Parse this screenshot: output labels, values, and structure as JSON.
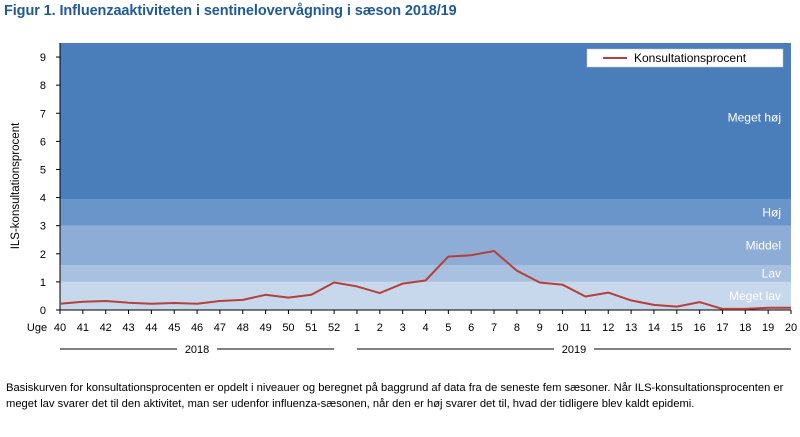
{
  "figure": {
    "title": "Figur 1. Influenzaaktiviteten i sentinelovervågning i sæson 2018/19",
    "caption": "Basiskurven for konsultationsprocenten er opdelt i niveauer og beregnet på baggrund af data fra de seneste fem sæsoner. Når ILS-konsultationsprocenten er meget lav svarer det til den aktivitet, man ser udenfor influenza-sæsonen, når den er høj svarer det til, hvad der tidligere blev kaldt epidemi."
  },
  "chart_data": {
    "type": "line",
    "xlabel": "Uge",
    "ylabel": "ILS-konsultationsprocent",
    "ylim": [
      0,
      9.5
    ],
    "yticks": [
      0,
      1,
      2,
      3,
      4,
      5,
      6,
      7,
      8,
      9
    ],
    "categories": [
      "40",
      "41",
      "42",
      "43",
      "44",
      "45",
      "46",
      "47",
      "48",
      "49",
      "50",
      "51",
      "52",
      "1",
      "2",
      "3",
      "4",
      "5",
      "6",
      "7",
      "8",
      "9",
      "10",
      "11",
      "12",
      "13",
      "14",
      "15",
      "16",
      "17",
      "18",
      "19",
      "20"
    ],
    "series": [
      {
        "name": "Konsultationsprocent",
        "color": "#b5403a",
        "values": [
          0.22,
          0.29,
          0.32,
          0.26,
          0.22,
          0.25,
          0.22,
          0.32,
          0.36,
          0.54,
          0.44,
          0.54,
          0.98,
          0.84,
          0.6,
          0.94,
          1.05,
          1.9,
          1.95,
          2.1,
          1.4,
          0.98,
          0.9,
          0.48,
          0.62,
          0.34,
          0.18,
          0.12,
          0.28,
          0.04,
          0.04,
          0.08,
          0.08
        ]
      }
    ],
    "bands": [
      {
        "label": "Meget lav",
        "from": 0,
        "to": 1.0,
        "color": "#c8d8ec"
      },
      {
        "label": "Lav",
        "from": 1.0,
        "to": 1.6,
        "color": "#a9c1e0"
      },
      {
        "label": "Middel",
        "from": 1.6,
        "to": 3.0,
        "color": "#8dadd6"
      },
      {
        "label": "Høj",
        "from": 3.0,
        "to": 3.95,
        "color": "#6a95cb"
      },
      {
        "label": "Meget høj",
        "from": 3.95,
        "to": 9.5,
        "color": "#4a7ebb"
      }
    ],
    "year_groups": [
      {
        "label": "2018",
        "first": "40",
        "last": "52"
      },
      {
        "label": "2019",
        "first": "1",
        "last": "20"
      }
    ],
    "legend_position": "top-right",
    "grid": false
  }
}
